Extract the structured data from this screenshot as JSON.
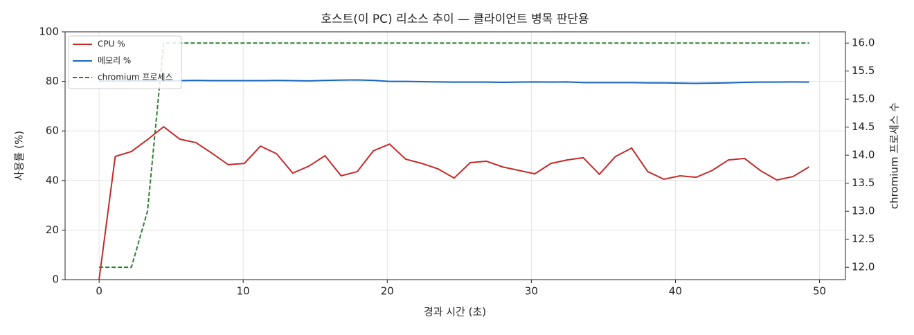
{
  "chart_data": {
    "type": "line",
    "title": "호스트(이 PC) 리소스 추이 — 클라이언트 병목 판단용",
    "xlabel": "경과 시간 (초)",
    "ylabel": "사용률 (%)",
    "y2label": "chromium 프로세스 수",
    "x": [
      0,
      1.12,
      2.24,
      3.36,
      4.48,
      5.6,
      6.72,
      7.84,
      8.96,
      10.08,
      11.2,
      12.32,
      13.44,
      14.56,
      15.68,
      16.8,
      17.92,
      19.04,
      20.16,
      21.28,
      22.4,
      23.52,
      24.64,
      25.76,
      26.88,
      28,
      29.12,
      30.24,
      31.36,
      32.48,
      33.6,
      34.72,
      35.84,
      36.96,
      38.08,
      39.2,
      40.32,
      41.44,
      42.56,
      43.68,
      44.8,
      45.92,
      47.04,
      48.16,
      49.28
    ],
    "series": [
      {
        "name": "CPU %",
        "color": "#c62828",
        "values": [
          0,
          49.7,
          51.7,
          56.5,
          61.7,
          56.7,
          55.3,
          51,
          46.4,
          46.9,
          53.9,
          50.8,
          43,
          45.8,
          50,
          41.9,
          43.6,
          52,
          54.7,
          48.6,
          46.9,
          44.7,
          41,
          47.2,
          47.8,
          45.5,
          44.1,
          42.7,
          46.9,
          48.3,
          49.2,
          42.5,
          49.7,
          53.1,
          43.6,
          40.5,
          41.9,
          41.3,
          44.1,
          48.3,
          48.9,
          43.9,
          40.2,
          41.6,
          45.5
        ]
      },
      {
        "name": "메모리 %",
        "color": "#1565c0",
        "values": [
          80.1,
          80.1,
          80.2,
          80.2,
          80.2,
          80.3,
          80.4,
          80.3,
          80.3,
          80.3,
          80.3,
          80.4,
          80.3,
          80.2,
          80.4,
          80.5,
          80.6,
          80.4,
          80,
          80,
          79.9,
          79.8,
          79.7,
          79.7,
          79.7,
          79.6,
          79.7,
          79.8,
          79.7,
          79.8,
          79.5,
          79.5,
          79.5,
          79.5,
          79.4,
          79.4,
          79.3,
          79.2,
          79.3,
          79.4,
          79.6,
          79.7,
          79.7,
          79.8,
          79.7
        ]
      },
      {
        "name": "chromium 프로세스",
        "color": "#2e7d32",
        "axis": "y2",
        "dashed": true,
        "values": [
          12,
          12,
          12,
          13,
          16,
          16,
          16,
          16,
          16,
          16,
          16,
          16,
          16,
          16,
          16,
          16,
          16,
          16,
          16,
          16,
          16,
          16,
          16,
          16,
          16,
          16,
          16,
          16,
          16,
          16,
          16,
          16,
          16,
          16,
          16,
          16,
          16,
          16,
          16,
          16,
          16,
          16,
          16,
          16,
          16
        ]
      }
    ],
    "xlim": [
      -2.36,
      51.8
    ],
    "xticks": [
      0,
      10,
      20,
      30,
      40,
      50
    ],
    "ylim": [
      0,
      100
    ],
    "yticks": [
      0,
      20,
      40,
      60,
      80,
      100
    ],
    "y2lim": [
      11.78,
      16.2
    ],
    "y2ticks": [
      {
        "value": 12,
        "label": "12.0"
      },
      12.5,
      {
        "value": 13,
        "label": "13.0"
      },
      13.5,
      {
        "value": 14,
        "label": "14.0"
      },
      14.5,
      {
        "value": 15,
        "label": "15.0"
      },
      15.5,
      {
        "value": 16,
        "label": "16.0"
      }
    ],
    "grid": true,
    "legend": "upper-left"
  }
}
